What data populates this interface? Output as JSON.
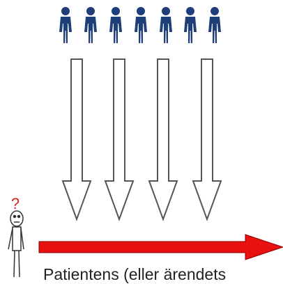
{
  "question_mark": "?",
  "caption": "Patientens (eller ärendets"
}
